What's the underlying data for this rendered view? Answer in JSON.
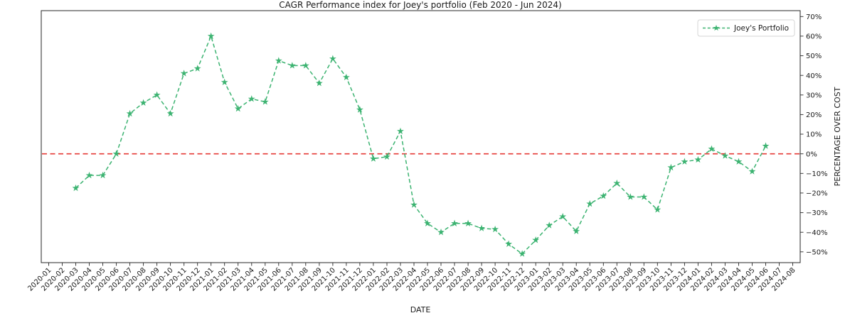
{
  "figure": {
    "title": "CAGR Performance index for Joey's portfolio (Feb 2020 - Jun 2024)",
    "xlabel": "DATE",
    "ylabel": "PERCENTAGE OVER COST",
    "legend_label": "Joey's Portfolio"
  },
  "colors": {
    "series_green": "#3cb371",
    "zero_line_red": "#e53935",
    "text": "#1a1a1a",
    "spine": "#262626",
    "legend_border": "#d6d6d6"
  },
  "chart_data": {
    "type": "line",
    "title": "CAGR Performance index for Joey's portfolio (Feb 2020 - Jun 2024)",
    "xlabel": "DATE",
    "ylabel": "PERCENTAGE OVER COST",
    "grid": false,
    "legend": {
      "position": "upper right",
      "entries": [
        "Joey's Portfolio"
      ]
    },
    "ylim": [
      -55.5,
      73
    ],
    "y_ticks": [
      70,
      60,
      50,
      40,
      30,
      20,
      10,
      0,
      -10,
      -20,
      -30,
      -40,
      -50
    ],
    "y_tick_labels": [
      "70%",
      "60%",
      "50%",
      "40%",
      "30%",
      "20%",
      "10%",
      "0%",
      "−10%",
      "−20%",
      "−30%",
      "−40%",
      "−50%"
    ],
    "x_tick_labels": [
      "2020-01",
      "2020-02",
      "2020-03",
      "2020-04",
      "2020-05",
      "2020-06",
      "2020-07",
      "2020-08",
      "2020-09",
      "2020-10",
      "2020-11",
      "2020-12",
      "2021-01",
      "2021-02",
      "2021-03",
      "2021-04",
      "2021-05",
      "2021-06",
      "2021-07",
      "2021-08",
      "2021-09",
      "2021-10",
      "2021-11",
      "2021-12",
      "2022-01",
      "2022-02",
      "2022-03",
      "2022-04",
      "2022-05",
      "2022-06",
      "2022-07",
      "2022-08",
      "2022-09",
      "2022-10",
      "2022-11",
      "2022-12",
      "2023-01",
      "2023-02",
      "2023-03",
      "2023-04",
      "2023-05",
      "2023-06",
      "2023-07",
      "2023-08",
      "2023-09",
      "2023-10",
      "2023-11",
      "2023-12",
      "2024-01",
      "2024-02",
      "2024-03",
      "2024-04",
      "2024-05",
      "2024-06",
      "2024-07",
      "2024-08"
    ],
    "zero_line": {
      "y": 0,
      "color": "#e53935",
      "style": "dashed"
    },
    "series": [
      {
        "name": "Joey's Portfolio",
        "color": "#3cb371",
        "line_style": "dashed",
        "marker": "star",
        "x": [
          "2020-03",
          "2020-04",
          "2020-05",
          "2020-06",
          "2020-07",
          "2020-08",
          "2020-09",
          "2020-10",
          "2020-11",
          "2020-12",
          "2021-01",
          "2021-02",
          "2021-03",
          "2021-04",
          "2021-05",
          "2021-06",
          "2021-07",
          "2021-08",
          "2021-09",
          "2021-10",
          "2021-11",
          "2021-12",
          "2022-01",
          "2022-02",
          "2022-03",
          "2022-04",
          "2022-05",
          "2022-06",
          "2022-07",
          "2022-08",
          "2022-09",
          "2022-10",
          "2022-11",
          "2022-12",
          "2023-01",
          "2023-02",
          "2023-03",
          "2023-04",
          "2023-05",
          "2023-06",
          "2023-07",
          "2023-08",
          "2023-09",
          "2023-10",
          "2023-11",
          "2023-12",
          "2024-01",
          "2024-02",
          "2024-03",
          "2024-04",
          "2024-05",
          "2024-06"
        ],
        "values": [
          -17.5,
          -11,
          -11,
          0,
          20.5,
          26,
          30,
          20.5,
          41,
          43.5,
          60,
          36.5,
          23,
          28,
          26.5,
          47.5,
          45,
          45,
          36,
          48.5,
          39,
          22.5,
          -2.5,
          -1.5,
          11.5,
          -26,
          -35.5,
          -40,
          -35.5,
          -35.5,
          -38,
          -38.5,
          -46,
          -51,
          -44,
          -36.5,
          -32,
          -39.5,
          -25.5,
          -21.5,
          -15,
          -22,
          -22,
          -28.5,
          -7,
          -4,
          -3,
          2.5,
          -1,
          -4,
          -9,
          4
        ]
      }
    ]
  }
}
